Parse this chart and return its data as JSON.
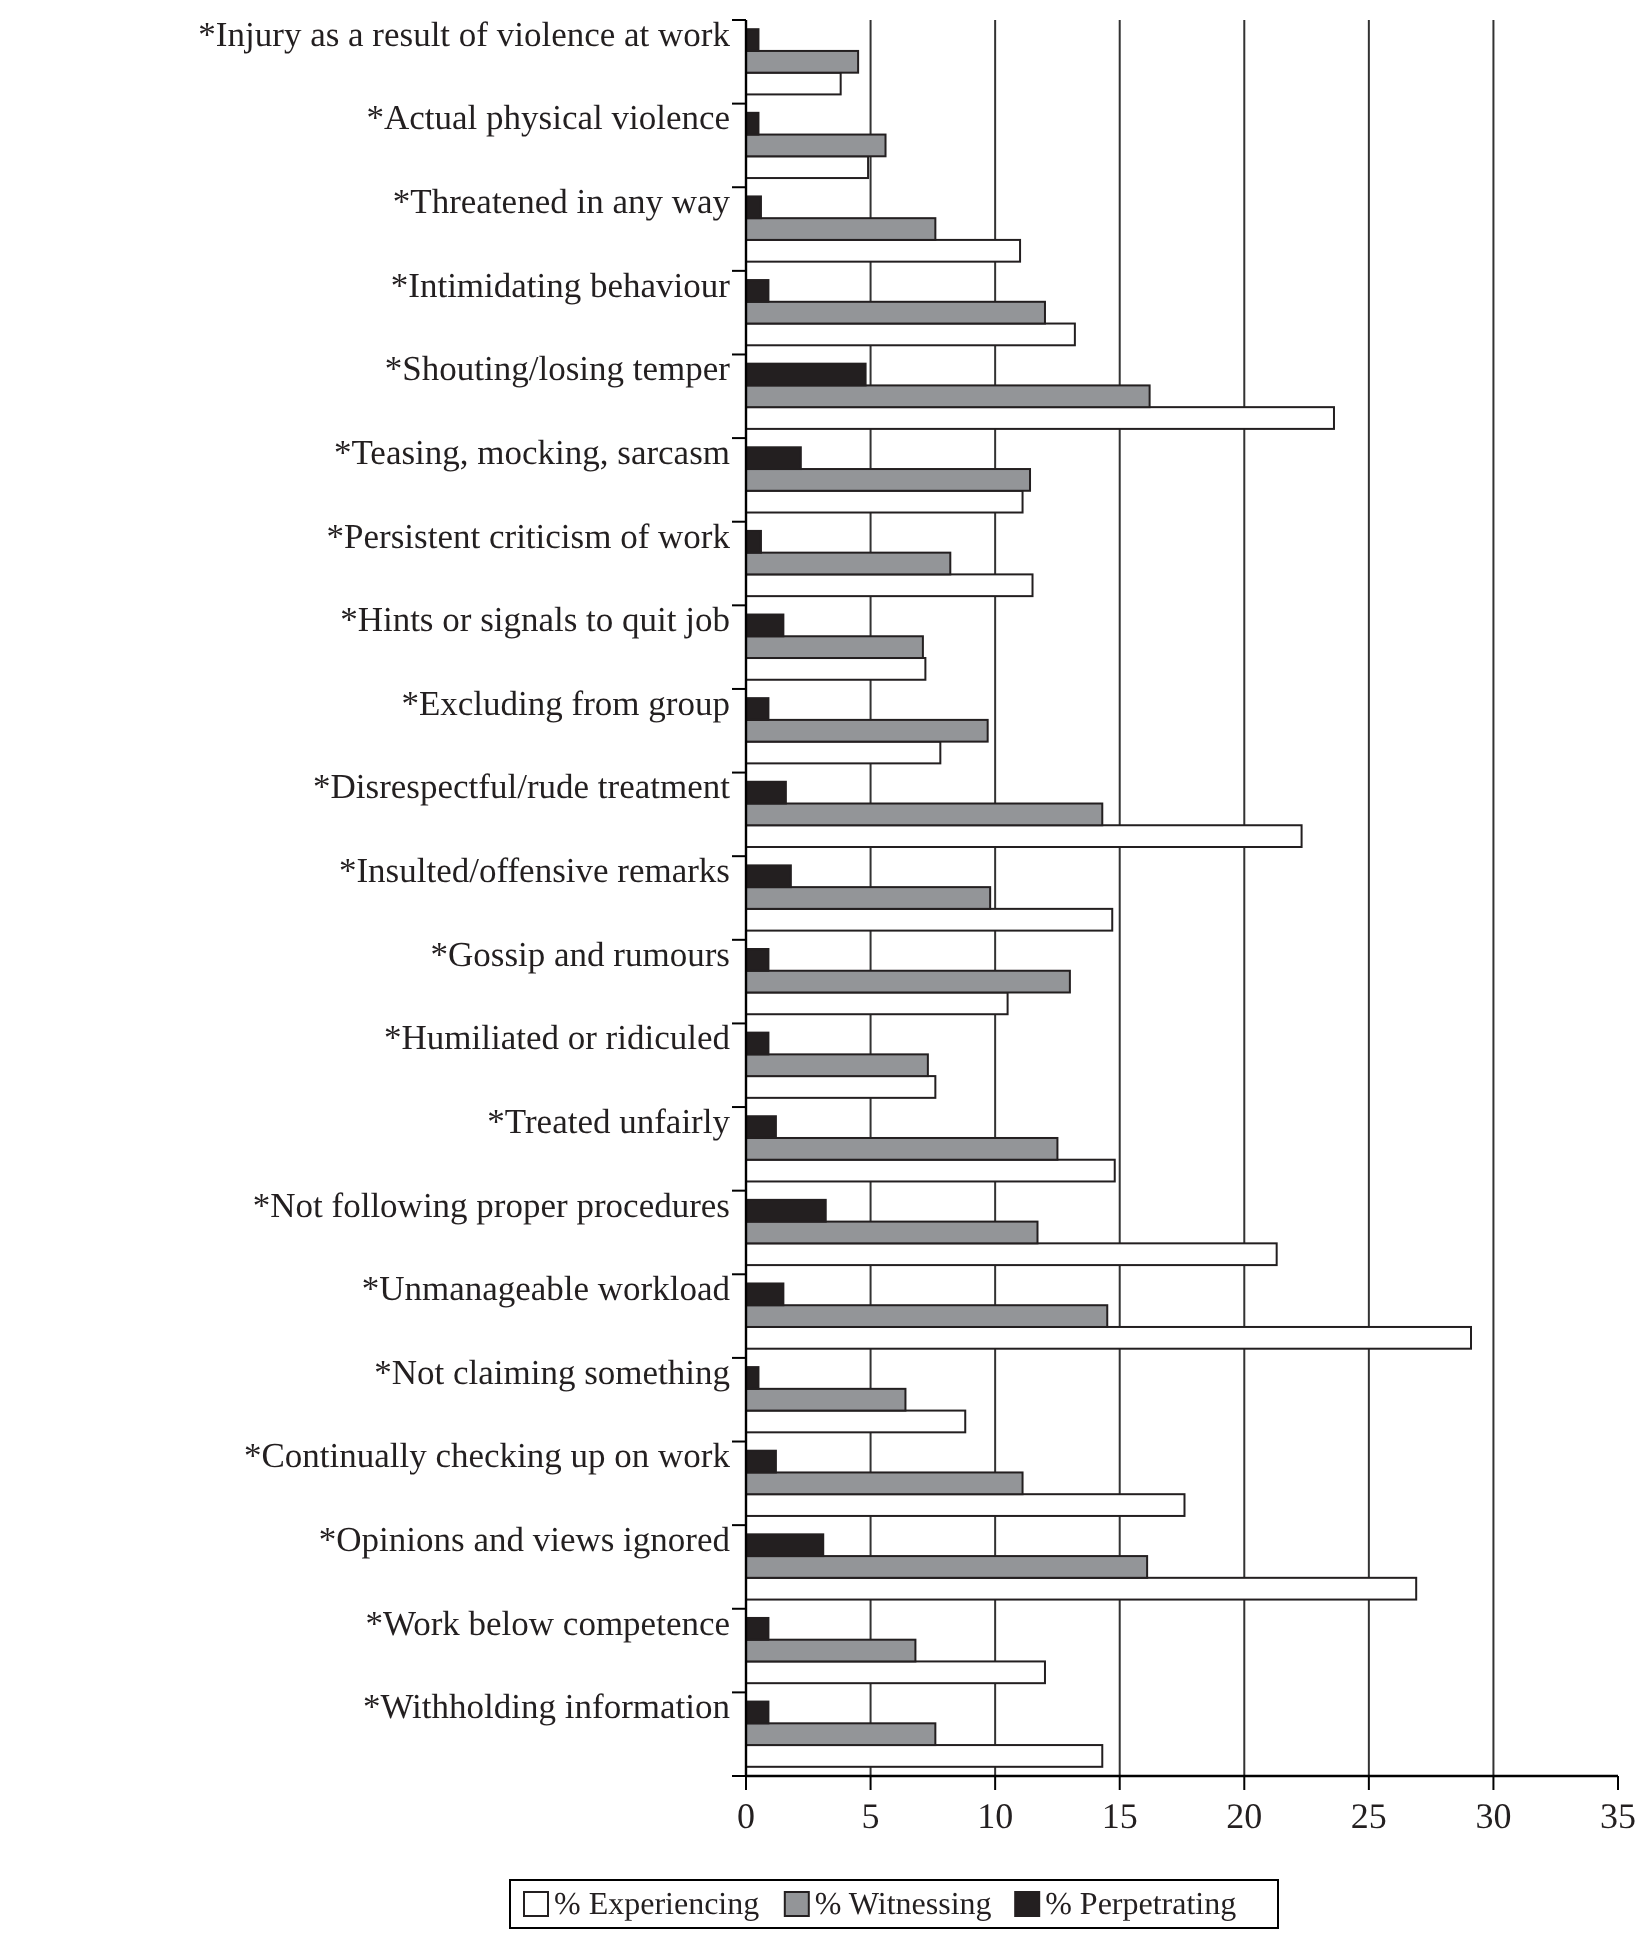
{
  "chart_data": {
    "type": "bar",
    "orientation": "horizontal",
    "categories": [
      "*Injury as a result of violence at work",
      "*Actual physical violence",
      "*Threatened in any way",
      "*Intimidating behaviour",
      "*Shouting/losing temper",
      "*Teasing, mocking, sarcasm",
      "*Persistent criticism of work",
      "*Hints or signals to quit job",
      "*Excluding from group",
      "*Disrespectful/rude treatment",
      "*Insulted/offensive remarks",
      "*Gossip and rumours",
      "*Humiliated or ridiculed",
      "*Treated unfairly",
      "*Not following proper procedures",
      "*Unmanageable workload",
      "*Not claiming something",
      "*Continually checking up on work",
      "*Opinions and views ignored",
      "*Work below competence",
      "*Withholding information"
    ],
    "series": [
      {
        "name": "% Experiencing",
        "color": "#ffffff",
        "values": [
          3.8,
          4.9,
          11.0,
          13.2,
          23.6,
          11.1,
          11.5,
          7.2,
          7.8,
          22.3,
          14.7,
          10.5,
          7.6,
          14.8,
          21.3,
          29.1,
          8.8,
          17.6,
          26.9,
          12.0,
          14.3
        ]
      },
      {
        "name": "% Witnessing",
        "color": "#939598",
        "values": [
          4.5,
          5.6,
          7.6,
          12.0,
          16.2,
          11.4,
          8.2,
          7.1,
          9.7,
          14.3,
          9.8,
          13.0,
          7.3,
          12.5,
          11.7,
          14.5,
          6.4,
          11.1,
          16.1,
          6.8,
          7.6
        ]
      },
      {
        "name": "% Perpetrating",
        "color": "#231f20",
        "values": [
          0.5,
          0.5,
          0.6,
          0.9,
          4.8,
          2.2,
          0.6,
          1.5,
          0.9,
          1.6,
          1.8,
          0.9,
          0.9,
          1.2,
          3.2,
          1.5,
          0.5,
          1.2,
          3.1,
          0.9,
          0.9
        ]
      }
    ],
    "xlim": [
      0,
      35
    ],
    "xticks": [
      0,
      5,
      10,
      15,
      20,
      25,
      30,
      35
    ],
    "grid": "x",
    "legend": "bottom"
  }
}
